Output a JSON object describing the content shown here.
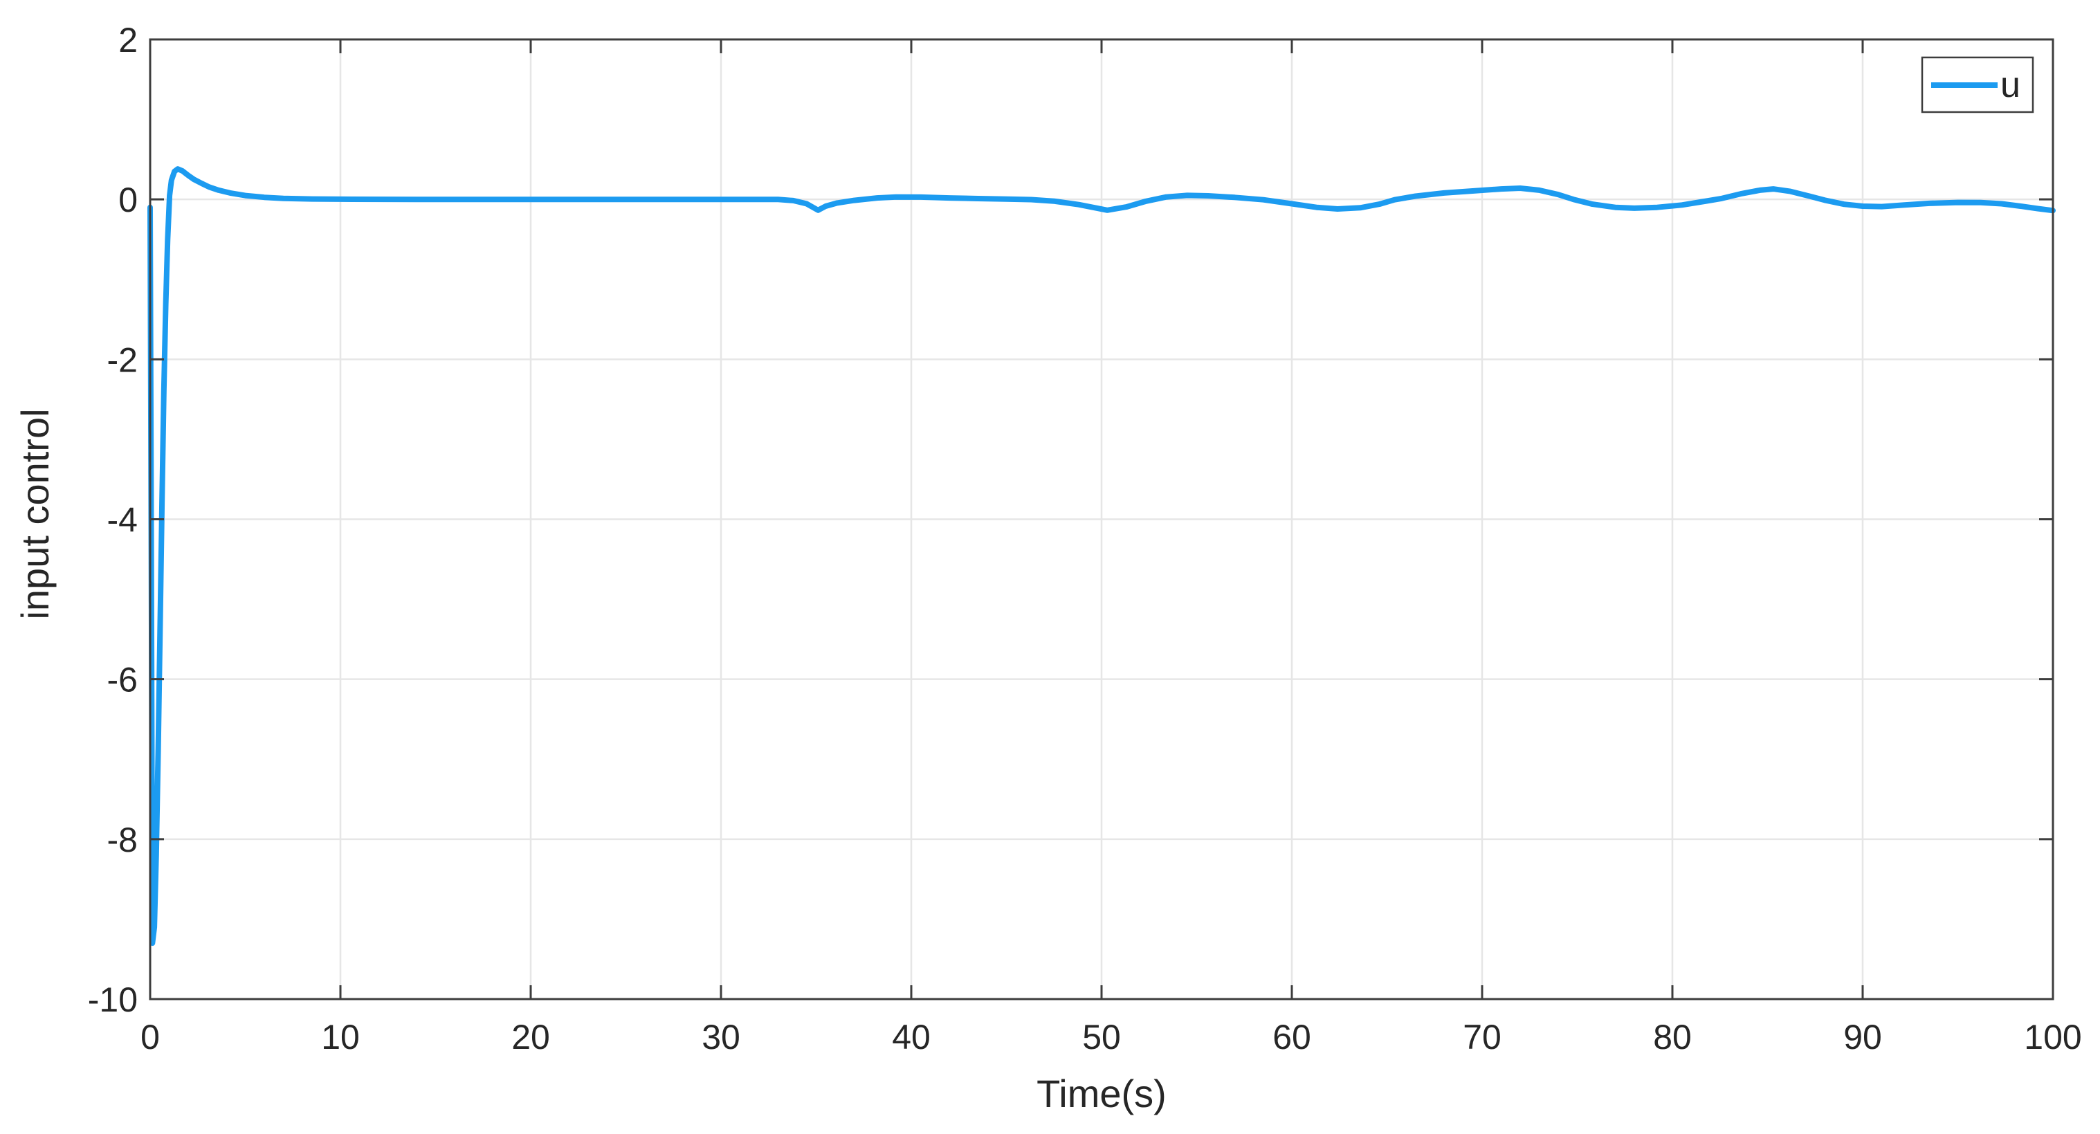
{
  "figure": {
    "background": "#ffffff"
  },
  "chart_data": {
    "type": "line",
    "title": "",
    "xlabel": "Time(s)",
    "ylabel": "input control",
    "xlim": [
      0,
      100
    ],
    "ylim": [
      -10,
      2
    ],
    "xticks": [
      0,
      10,
      20,
      30,
      40,
      50,
      60,
      70,
      80,
      90,
      100
    ],
    "yticks": [
      2,
      0,
      -2,
      -4,
      -6,
      -8,
      -10
    ],
    "grid": true,
    "box": true,
    "axis_color": "#3d3d3d",
    "grid_color": "#e6e6e6",
    "text_color": "#262626",
    "legend": {
      "position": "top-right",
      "entries": [
        "u"
      ]
    },
    "series": [
      {
        "name": "u",
        "color": "#1c9bf0",
        "line_width": 8,
        "points": [
          [
            0,
            -0.1
          ],
          [
            0.06,
            -4.5
          ],
          [
            0.12,
            -9.3
          ],
          [
            0.22,
            -9.1
          ],
          [
            0.32,
            -8.2
          ],
          [
            0.42,
            -6.9
          ],
          [
            0.52,
            -5.4
          ],
          [
            0.62,
            -3.8
          ],
          [
            0.72,
            -2.4
          ],
          [
            0.82,
            -1.3
          ],
          [
            0.92,
            -0.5
          ],
          [
            1.02,
            0.05
          ],
          [
            1.12,
            0.24
          ],
          [
            1.28,
            0.35
          ],
          [
            1.45,
            0.38
          ],
          [
            1.7,
            0.355
          ],
          [
            2.0,
            0.3
          ],
          [
            2.3,
            0.25
          ],
          [
            2.7,
            0.2
          ],
          [
            3.1,
            0.155
          ],
          [
            3.6,
            0.115
          ],
          [
            4.2,
            0.08
          ],
          [
            5.0,
            0.048
          ],
          [
            6.0,
            0.026
          ],
          [
            7.0,
            0.013
          ],
          [
            8.5,
            0.005
          ],
          [
            10,
            0.002
          ],
          [
            14,
            0
          ],
          [
            18,
            0
          ],
          [
            22,
            0
          ],
          [
            26,
            0
          ],
          [
            30,
            0
          ],
          [
            33,
            0
          ],
          [
            33.8,
            -0.015
          ],
          [
            34.5,
            -0.055
          ],
          [
            35.1,
            -0.135
          ],
          [
            35.5,
            -0.085
          ],
          [
            36.1,
            -0.045
          ],
          [
            37,
            -0.012
          ],
          [
            38.2,
            0.018
          ],
          [
            39.2,
            0.03
          ],
          [
            40.5,
            0.028
          ],
          [
            42,
            0.018
          ],
          [
            43.5,
            0.01
          ],
          [
            45,
            0.004
          ],
          [
            46.3,
            -0.003
          ],
          [
            47.5,
            -0.022
          ],
          [
            48.8,
            -0.065
          ],
          [
            50.3,
            -0.135
          ],
          [
            51.3,
            -0.095
          ],
          [
            52.3,
            -0.025
          ],
          [
            53.4,
            0.03
          ],
          [
            54.5,
            0.05
          ],
          [
            55.6,
            0.045
          ],
          [
            57,
            0.025
          ],
          [
            58.5,
            -0.005
          ],
          [
            60,
            -0.055
          ],
          [
            61.3,
            -0.1
          ],
          [
            62.4,
            -0.12
          ],
          [
            63.6,
            -0.105
          ],
          [
            64.6,
            -0.06
          ],
          [
            65.4,
            -0.005
          ],
          [
            66.5,
            0.04
          ],
          [
            68,
            0.08
          ],
          [
            69.5,
            0.105
          ],
          [
            71,
            0.13
          ],
          [
            72,
            0.14
          ],
          [
            73,
            0.115
          ],
          [
            74,
            0.06
          ],
          [
            74.8,
            0
          ],
          [
            75.8,
            -0.06
          ],
          [
            77,
            -0.1
          ],
          [
            78,
            -0.11
          ],
          [
            79.2,
            -0.1
          ],
          [
            80.5,
            -0.07
          ],
          [
            81.8,
            -0.02
          ],
          [
            82.6,
            0.012
          ],
          [
            83.6,
            0.07
          ],
          [
            84.6,
            0.115
          ],
          [
            85.3,
            0.13
          ],
          [
            86.2,
            0.1
          ],
          [
            87.2,
            0.04
          ],
          [
            88,
            -0.01
          ],
          [
            89,
            -0.06
          ],
          [
            90,
            -0.085
          ],
          [
            91,
            -0.09
          ],
          [
            92.2,
            -0.07
          ],
          [
            93.5,
            -0.05
          ],
          [
            95,
            -0.038
          ],
          [
            96.2,
            -0.04
          ],
          [
            97.3,
            -0.055
          ],
          [
            98.3,
            -0.085
          ],
          [
            99.2,
            -0.115
          ],
          [
            100,
            -0.14
          ]
        ]
      }
    ]
  }
}
